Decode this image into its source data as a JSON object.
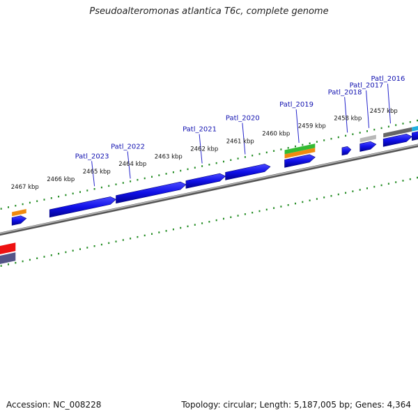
{
  "title": "Pseudoalteromonas atlantica T6c, complete genome",
  "footer": {
    "accession": "Accession: NC_008228",
    "summary": "Topology: circular; Length: 5,187,005 bp; Genes: 4,364"
  },
  "colors": {
    "cds": "#1010e8",
    "backbone": "#888888",
    "ticks": "#1f8a1f",
    "label_line": "#2222cc",
    "orange": "#f08a10",
    "green": "#33bb33",
    "gray": "#b8b8b8",
    "darkgray": "#666666",
    "cyan": "#20b0e0",
    "red": "#ee1111",
    "slate": "#555588"
  },
  "scale_labels": [
    {
      "kbp": 2467,
      "text": "2467 kbp"
    },
    {
      "kbp": 2466,
      "text": "2466 kbp"
    },
    {
      "kbp": 2465,
      "text": "2465 kbp"
    },
    {
      "kbp": 2464,
      "text": "2464 kbp"
    },
    {
      "kbp": 2463,
      "text": "2463 kbp"
    },
    {
      "kbp": 2462,
      "text": "2462 kbp"
    },
    {
      "kbp": 2461,
      "text": "2461 kbp"
    },
    {
      "kbp": 2460,
      "text": "2460 kbp"
    },
    {
      "kbp": 2459,
      "text": "2459 kbp"
    },
    {
      "kbp": 2458,
      "text": "2458 kbp"
    },
    {
      "kbp": 2457,
      "text": "2457 kbp"
    }
  ],
  "gene_labels": [
    {
      "name": "Patl_2023",
      "kbp": 2465.1
    },
    {
      "name": "Patl_2022",
      "kbp": 2464.1
    },
    {
      "name": "Patl_2021",
      "kbp": 2462.1
    },
    {
      "name": "Patl_2020",
      "kbp": 2460.9
    },
    {
      "name": "Patl_2019",
      "kbp": 2459.4
    },
    {
      "name": "Patl_2018",
      "kbp": 2458.05
    },
    {
      "name": "Patl_2017",
      "kbp": 2457.45
    },
    {
      "name": "Patl_2016",
      "kbp": 2456.85
    }
  ],
  "forward_genes": [
    {
      "start": 2467.4,
      "end": 2467.0,
      "color": "cds"
    },
    {
      "start": 2466.35,
      "end": 2464.5,
      "color": "cds"
    },
    {
      "start": 2464.5,
      "end": 2462.55,
      "color": "cds"
    },
    {
      "start": 2462.55,
      "end": 2461.45,
      "color": "cds"
    },
    {
      "start": 2461.45,
      "end": 2460.2,
      "color": "cds"
    },
    {
      "start": 2459.8,
      "end": 2458.95,
      "color": "cds"
    },
    {
      "start": 2458.2,
      "end": 2457.95,
      "color": "cds"
    },
    {
      "start": 2457.7,
      "end": 2457.25,
      "color": "cds"
    },
    {
      "start": 2457.05,
      "end": 2456.25,
      "color": "cds"
    },
    {
      "start": 2456.25,
      "end": 2455.5,
      "color": "cds"
    }
  ],
  "feature_bands": [
    {
      "start": 2467.4,
      "end": 2467.0,
      "color": "orange",
      "row": 1
    },
    {
      "start": 2459.8,
      "end": 2458.95,
      "color": "orange",
      "row": 1
    },
    {
      "start": 2459.8,
      "end": 2458.95,
      "color": "green",
      "row": 2
    },
    {
      "start": 2457.7,
      "end": 2457.25,
      "color": "gray",
      "row": 1
    },
    {
      "start": 2457.05,
      "end": 2456.25,
      "color": "darkgray",
      "row": 1
    },
    {
      "start": 2456.25,
      "end": 2455.5,
      "color": "cyan",
      "row": 1
    },
    {
      "start": 2467.8,
      "end": 2467.3,
      "color": "red",
      "row": -2
    },
    {
      "start": 2467.8,
      "end": 2467.3,
      "color": "slate",
      "row": -3
    }
  ]
}
